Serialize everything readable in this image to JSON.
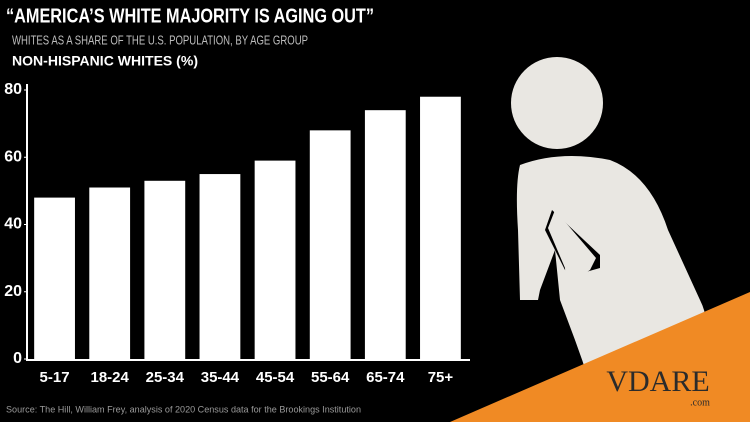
{
  "chart_data": {
    "type": "bar",
    "title": "“AMERICA’S WHITE MAJORITY IS AGING OUT”",
    "subtitle": "WHITES AS A SHARE OF THE U.S. POPULATION, BY AGE GROUP",
    "y_label": "NON-HISPANIC WHITES (%)",
    "source": "Source: The Hill, William Frey, analysis of 2020 Census data for the Brookings Institution",
    "categories": [
      "5-17",
      "18-24",
      "25-34",
      "35-44",
      "45-54",
      "55-64",
      "65-74",
      "75+"
    ],
    "values": [
      48,
      51,
      53,
      55,
      59,
      68,
      74,
      78
    ],
    "color": "#ffffff",
    "ylim": [
      0,
      80
    ],
    "yticks": [
      0,
      20,
      40,
      60,
      80
    ],
    "grid": false
  },
  "logo": {
    "name": "VDARE",
    "suffix": ".com"
  }
}
